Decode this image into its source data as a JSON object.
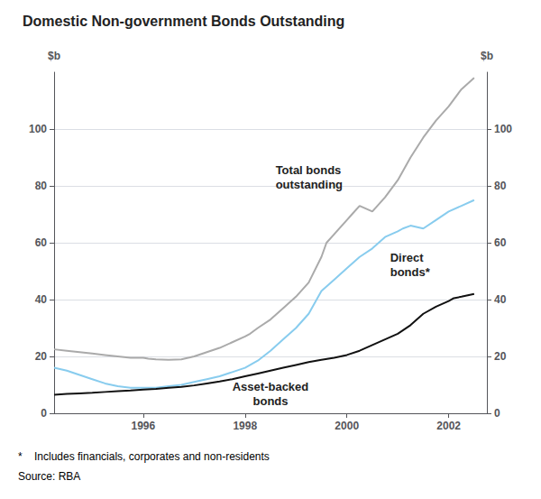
{
  "chart_data": {
    "type": "line",
    "title": "Domestic Non-government Bonds Outstanding",
    "ylabel": "$b",
    "y2label": "$b",
    "footnote": "*    Includes financials, corporates and non-residents",
    "source": "Source: RBA",
    "xlim": [
      1994.25,
      2002.75
    ],
    "xticks": [
      1996,
      1998,
      2000,
      2002
    ],
    "ylim": [
      0,
      120
    ],
    "yticks": [
      0,
      20,
      40,
      60,
      80,
      100
    ],
    "y2lim": [
      0,
      120
    ],
    "y2ticks": [
      0,
      20,
      40,
      60,
      80,
      100
    ],
    "grid": true,
    "series": [
      {
        "name": "Total bonds outstanding",
        "color": "#aaaaaa",
        "x": [
          1994.25,
          1994.5,
          1994.75,
          1995.0,
          1995.25,
          1995.5,
          1995.75,
          1996.0,
          1996.1,
          1996.25,
          1996.5,
          1996.75,
          1997.0,
          1997.25,
          1997.5,
          1997.75,
          1998.0,
          1998.1,
          1998.25,
          1998.5,
          1998.75,
          1999.0,
          1999.25,
          1999.5,
          1999.6,
          1999.75,
          2000.0,
          2000.1,
          2000.25,
          2000.5,
          2000.75,
          2001.0,
          2001.25,
          2001.5,
          2001.75,
          2002.0,
          2002.25,
          2002.5
        ],
        "values": [
          22.5,
          22.0,
          21.5,
          21.0,
          20.5,
          20.0,
          19.5,
          19.5,
          19.2,
          19.0,
          18.8,
          19.0,
          20.0,
          21.5,
          23.0,
          25.0,
          27.0,
          28.0,
          30.0,
          33.0,
          37.0,
          41.0,
          46.0,
          55.0,
          60.0,
          63.0,
          68.0,
          70.0,
          73.0,
          71.0,
          76.0,
          82.0,
          90.0,
          97.0,
          103.0,
          108.0,
          114.0,
          118.0
        ]
      },
      {
        "name": "Direct bonds*",
        "color": "#88ccee",
        "x": [
          1994.25,
          1994.5,
          1994.75,
          1995.0,
          1995.25,
          1995.5,
          1995.75,
          1996.0,
          1996.25,
          1996.5,
          1996.75,
          1997.0,
          1997.25,
          1997.5,
          1997.75,
          1998.0,
          1998.25,
          1998.5,
          1998.75,
          1999.0,
          1999.25,
          1999.5,
          1999.75,
          2000.0,
          2000.25,
          2000.5,
          2000.75,
          2001.0,
          2001.1,
          2001.25,
          2001.5,
          2001.75,
          2002.0,
          2002.25,
          2002.5
        ],
        "values": [
          16.0,
          15.0,
          13.5,
          12.0,
          10.5,
          9.5,
          9.0,
          9.0,
          9.0,
          9.5,
          10.0,
          11.0,
          12.0,
          13.0,
          14.5,
          16.0,
          18.5,
          22.0,
          26.0,
          30.0,
          35.0,
          43.0,
          47.0,
          51.0,
          55.0,
          58.0,
          62.0,
          64.0,
          65.0,
          66.0,
          65.0,
          68.0,
          71.0,
          73.0,
          75.0
        ]
      },
      {
        "name": "Asset-backed bonds",
        "color": "#111111",
        "x": [
          1994.25,
          1994.5,
          1994.75,
          1995.0,
          1995.25,
          1995.5,
          1995.75,
          1996.0,
          1996.25,
          1996.5,
          1996.75,
          1997.0,
          1997.25,
          1997.5,
          1997.75,
          1998.0,
          1998.25,
          1998.5,
          1998.75,
          1999.0,
          1999.25,
          1999.5,
          1999.75,
          2000.0,
          2000.25,
          2000.5,
          2000.75,
          2001.0,
          2001.25,
          2001.5,
          2001.75,
          2002.0,
          2002.1,
          2002.25,
          2002.5
        ],
        "values": [
          6.5,
          6.8,
          7.0,
          7.2,
          7.5,
          7.8,
          8.0,
          8.3,
          8.6,
          9.0,
          9.3,
          9.8,
          10.5,
          11.2,
          12.0,
          13.0,
          14.0,
          15.0,
          16.0,
          17.0,
          18.0,
          18.8,
          19.5,
          20.5,
          22.0,
          24.0,
          26.0,
          28.0,
          31.0,
          35.0,
          37.5,
          39.5,
          40.5,
          41.0,
          42.0
        ]
      }
    ],
    "annotations": [
      {
        "text": "Total bonds\noutstanding",
        "x": 1998.6,
        "y": 78
      },
      {
        "text": "Direct\nbonds*",
        "x": 2000.85,
        "y": 47
      },
      {
        "text": "Asset-backed\nbonds",
        "x": 1998.5,
        "y": 12
      }
    ]
  }
}
